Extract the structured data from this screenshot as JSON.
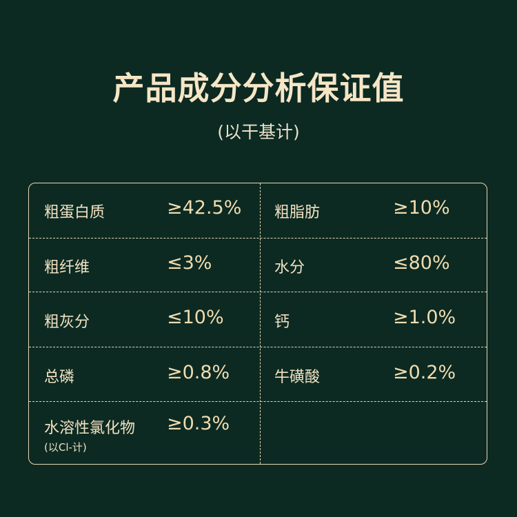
{
  "title": "产品成分分析保证值",
  "subtitle": "(以干基计)",
  "colors": {
    "background": "#0c2a22",
    "text": "#f2e2c2",
    "border": "#e9d9b6"
  },
  "rows": [
    {
      "left": {
        "label": "粗蛋白质",
        "value": "≥42.5%"
      },
      "right": {
        "label": "粗脂肪",
        "value": "≥10%"
      }
    },
    {
      "left": {
        "label": "粗纤维",
        "value": "≤3%"
      },
      "right": {
        "label": "水分",
        "value": "≤80%"
      }
    },
    {
      "left": {
        "label": "粗灰分",
        "value": "≤10%"
      },
      "right": {
        "label": "钙",
        "value": "≥1.0%"
      }
    },
    {
      "left": {
        "label": "总磷",
        "value": "≥0.8%"
      },
      "right": {
        "label": "牛磺酸",
        "value": "≥0.2%"
      }
    },
    {
      "left": {
        "label": "水溶性氯化物",
        "value": "≥0.3%",
        "note": "(以Cl-计)"
      }
    }
  ]
}
